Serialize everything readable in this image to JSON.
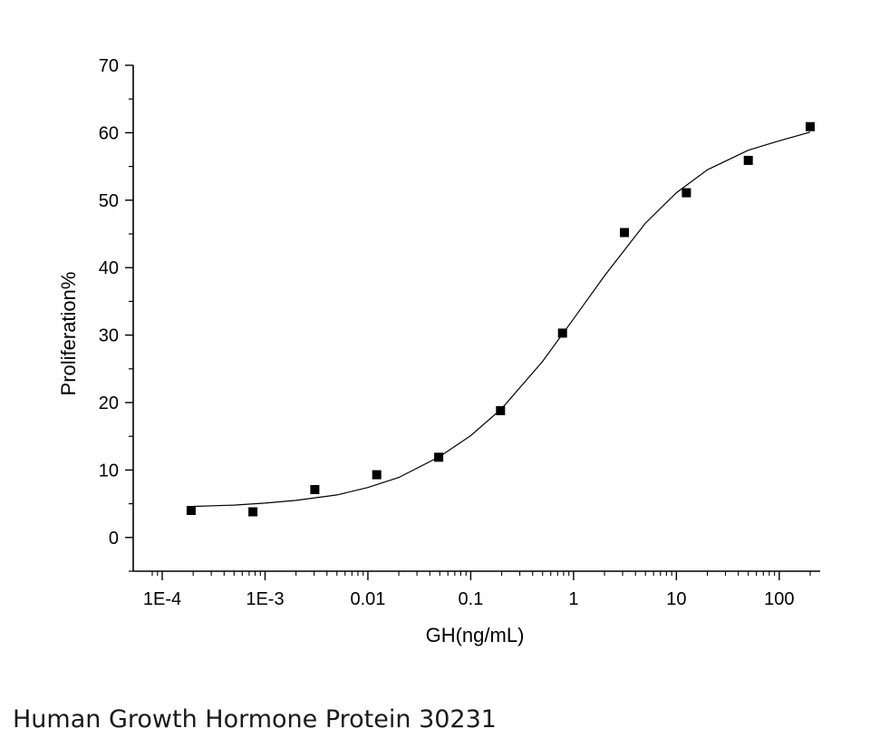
{
  "caption": "Human Growth Hormone Protein 30231",
  "chart_data": {
    "type": "scatter",
    "xlabel": "GH(ng/mL)",
    "ylabel": "Proliferation%",
    "x_scale": "log",
    "xlim": [
      0.0001,
      250
    ],
    "ylim": [
      -5,
      70
    ],
    "x_ticks": [
      {
        "value": 0.0001,
        "label": "1E-4"
      },
      {
        "value": 0.001,
        "label": "1E-3"
      },
      {
        "value": 0.01,
        "label": "0.01"
      },
      {
        "value": 0.1,
        "label": "0.1"
      },
      {
        "value": 1,
        "label": "1"
      },
      {
        "value": 10,
        "label": "10"
      },
      {
        "value": 100,
        "label": "100"
      }
    ],
    "y_ticks": [
      0,
      10,
      20,
      30,
      40,
      50,
      60,
      70
    ],
    "grid": false,
    "series": [
      {
        "marker": "square",
        "x": [
          0.000191,
          0.000763,
          0.00305,
          0.0122,
          0.0488,
          0.195,
          0.781,
          3.125,
          12.5,
          50,
          200
        ],
        "y": [
          4.0,
          3.8,
          7.1,
          9.3,
          11.9,
          18.8,
          30.3,
          45.2,
          51.1,
          55.9,
          60.9
        ]
      },
      {
        "line": "fit",
        "x": [
          0.000191,
          0.0005,
          0.001,
          0.002,
          0.005,
          0.01,
          0.02,
          0.05,
          0.1,
          0.2,
          0.5,
          1,
          2,
          5,
          10,
          20,
          50,
          100,
          200
        ],
        "y": [
          4.6,
          4.8,
          5.1,
          5.5,
          6.3,
          7.4,
          8.9,
          12.0,
          15.1,
          19.1,
          26.1,
          32.4,
          38.8,
          46.6,
          51.1,
          54.5,
          57.4,
          58.8,
          60.1
        ]
      }
    ]
  }
}
